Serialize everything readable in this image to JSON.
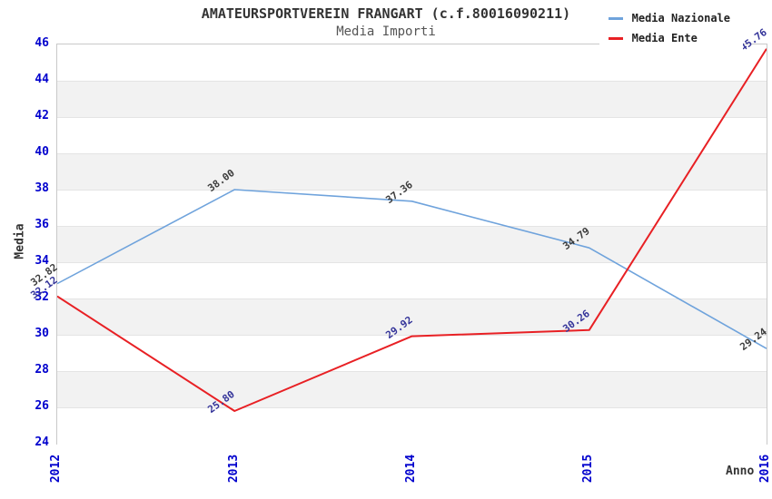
{
  "header": {
    "title": "AMATEURSPORTVEREIN FRANGART (c.f.80016090211)",
    "subtitle": "Media Importi"
  },
  "chart_data": {
    "type": "line",
    "title": "AMATEURSPORTVEREIN FRANGART (c.f.80016090211)",
    "subtitle": "Media Importi",
    "xlabel": "Anno",
    "ylabel": "Media",
    "x": [
      "2012",
      "2013",
      "2014",
      "2015",
      "2016"
    ],
    "series": [
      {
        "name": "Media Nazionale",
        "color": "#6fa3dc",
        "label_color": "#3c3c3c",
        "line_width": 1.6,
        "values": [
          32.82,
          38.0,
          37.36,
          34.79,
          29.24
        ],
        "labels": [
          "32.82",
          "38.00",
          "37.36",
          "34.79",
          "29.24"
        ]
      },
      {
        "name": "Media Ente",
        "color": "#e82024",
        "label_color": "#333399",
        "line_width": 2,
        "values": [
          32.12,
          25.8,
          29.92,
          30.26,
          45.76
        ],
        "labels": [
          "32.12",
          "25.80",
          "29.92",
          "30.26",
          "45.76"
        ]
      }
    ],
    "ylim": [
      24,
      46
    ],
    "yticks": [
      24,
      26,
      28,
      30,
      32,
      34,
      36,
      38,
      40,
      42,
      44,
      46
    ],
    "ytick_step": 2,
    "tick_color": "#0000cd",
    "band_color": "#f2f2f2",
    "band_alt_color": "#ffffff",
    "gridline_color": "#e4e4e4",
    "grid": "horizontal-bands",
    "legend_position": "top-right",
    "legend_background": "#ffffff"
  }
}
